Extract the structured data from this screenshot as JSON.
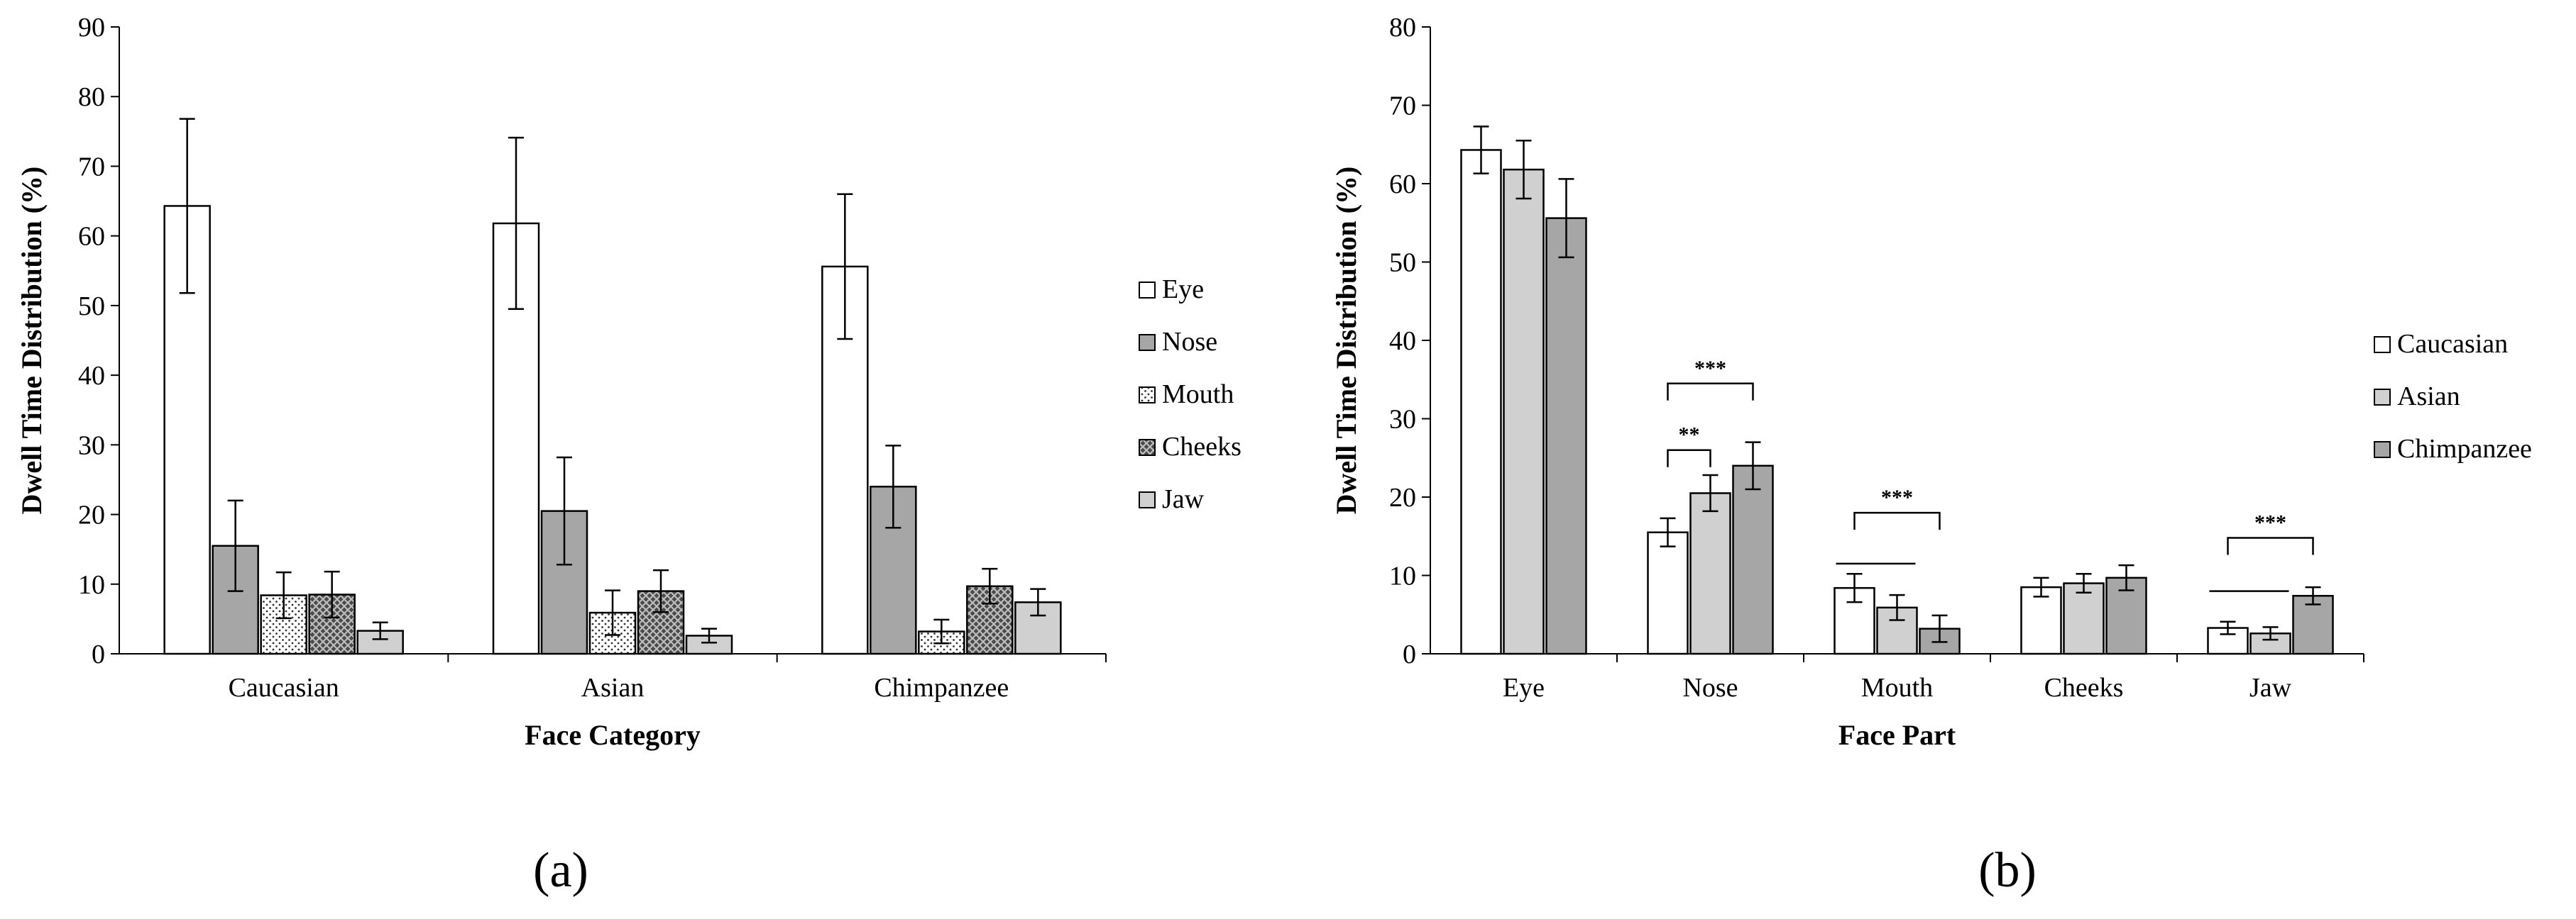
{
  "chart_data": [
    {
      "type": "bar",
      "panel_label": "(a)",
      "xlabel": "Face Category",
      "ylabel": "Dwell Time Distribution  (%)",
      "ylim": [
        0,
        90
      ],
      "yticks": [
        0,
        10,
        20,
        30,
        40,
        50,
        60,
        70,
        80,
        90
      ],
      "grid": false,
      "legend_position": "right",
      "categories": [
        "Caucasian",
        "Asian",
        "Chimpanzee"
      ],
      "series": [
        {
          "name": "Eye",
          "fill": "#ffffff",
          "pattern": "solid",
          "values": [
            64.3,
            61.8,
            55.6
          ],
          "errors": [
            12.5,
            12.3,
            10.4
          ]
        },
        {
          "name": "Nose",
          "fill": "#a6a6a6",
          "pattern": "solid",
          "values": [
            15.5,
            20.5,
            24.0
          ],
          "errors": [
            6.5,
            7.7,
            5.9
          ]
        },
        {
          "name": "Mouth",
          "fill": "#ffffff",
          "pattern": "dots",
          "values": [
            8.4,
            5.9,
            3.2
          ],
          "errors": [
            3.3,
            3.2,
            1.7
          ]
        },
        {
          "name": "Cheeks",
          "fill": "#7f7f7f",
          "pattern": "crosshatch",
          "values": [
            8.5,
            9.0,
            9.7
          ],
          "errors": [
            3.3,
            3.0,
            2.5
          ]
        },
        {
          "name": "Jaw",
          "fill": "#d0d0d0",
          "pattern": "solid",
          "values": [
            3.3,
            2.6,
            7.4
          ],
          "errors": [
            1.2,
            1.0,
            1.9
          ]
        }
      ]
    },
    {
      "type": "bar",
      "panel_label": "(b)",
      "xlabel": "Face Part",
      "ylabel": "Dwell Time Distribution  (%)",
      "ylim": [
        0,
        80
      ],
      "yticks": [
        0,
        10,
        20,
        30,
        40,
        50,
        60,
        70,
        80
      ],
      "grid": false,
      "legend_position": "right",
      "categories": [
        "Eye",
        "Nose",
        "Mouth",
        "Cheeks",
        "Jaw"
      ],
      "series": [
        {
          "name": "Caucasian",
          "fill": "#ffffff",
          "values": [
            64.3,
            15.5,
            8.4,
            8.5,
            3.3
          ],
          "errors": [
            3.0,
            1.8,
            1.8,
            1.2,
            0.8
          ]
        },
        {
          "name": "Asian",
          "fill": "#d0d0d0",
          "values": [
            61.8,
            20.5,
            5.9,
            9.0,
            2.6
          ],
          "errors": [
            3.7,
            2.3,
            1.6,
            1.2,
            0.8
          ]
        },
        {
          "name": "Chimpanzee",
          "fill": "#a6a6a6",
          "values": [
            55.6,
            24.0,
            3.2,
            9.7,
            7.4
          ],
          "errors": [
            5.0,
            3.0,
            1.7,
            1.6,
            1.1
          ]
        }
      ],
      "significance": [
        {
          "category": "Nose",
          "from": "Caucasian",
          "to": "Asian",
          "label": "**",
          "level": 26.0
        },
        {
          "category": "Nose",
          "from": "Caucasian",
          "to": "Chimpanzee",
          "label": "***",
          "level": 34.5
        },
        {
          "category": "Mouth",
          "from": "Caucasian",
          "to": "Chimpanzee",
          "label": "***",
          "level": 18.0
        },
        {
          "category": "Jaw",
          "from": "Caucasian",
          "to": "Chimpanzee",
          "label": "***",
          "level": 14.8
        }
      ],
      "plain_lines": [
        {
          "category": "Mouth",
          "from": "Caucasian",
          "to": "Asian",
          "level": 11.5
        },
        {
          "category": "Jaw",
          "from": "Caucasian",
          "to": "Asian",
          "level": 8.0
        }
      ]
    }
  ]
}
